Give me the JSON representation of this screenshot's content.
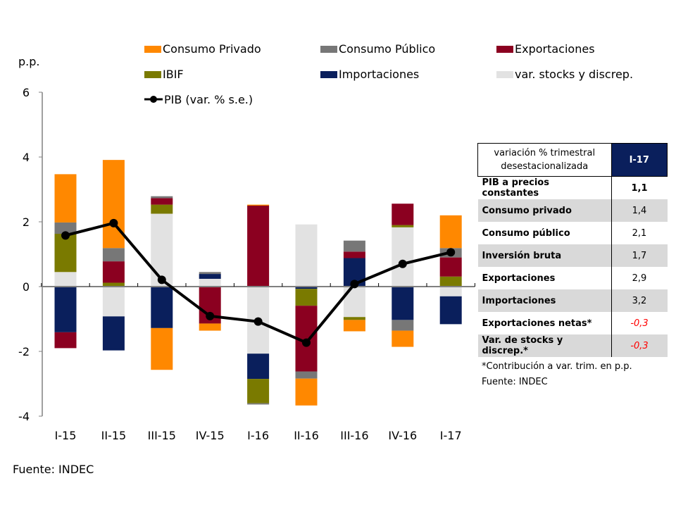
{
  "chart_data": {
    "type": "bar",
    "stacked": true,
    "ylabel": "p.p.",
    "ylim": [
      -4,
      6
    ],
    "yticks": [
      "6",
      "4",
      "2",
      "0",
      "-2",
      "-4"
    ],
    "grid": false,
    "legend_position": "top",
    "categories": [
      "I-15",
      "II-15",
      "III-15",
      "IV-15",
      "I-16",
      "II-16",
      "III-16",
      "IV-16",
      "I-17"
    ],
    "series": [
      {
        "name": "var. stocks y discrep.",
        "color": "#E2E2E2",
        "values": [
          0.45,
          -0.92,
          2.25,
          0.24,
          -2.07,
          1.92,
          -0.94,
          1.83,
          -0.3
        ]
      },
      {
        "name": "Importaciones",
        "color": "#0A1F5C",
        "values": [
          -1.41,
          -1.05,
          -1.28,
          0.15,
          -0.78,
          -0.07,
          0.88,
          -1.03,
          -0.86
        ]
      },
      {
        "name": "IBIF",
        "color": "#7A7A00",
        "values": [
          1.18,
          0.12,
          0.28,
          0.0,
          -0.75,
          -0.52,
          -0.09,
          0.07,
          0.31
        ]
      },
      {
        "name": "Exportaciones",
        "color": "#8B0020",
        "values": [
          -0.49,
          0.66,
          0.2,
          -1.14,
          2.5,
          -2.03,
          0.2,
          0.66,
          0.59
        ]
      },
      {
        "name": "Consumo Público",
        "color": "#777777",
        "values": [
          0.35,
          0.41,
          0.06,
          0.06,
          -0.04,
          -0.22,
          0.34,
          -0.33,
          0.29
        ]
      },
      {
        "name": "Consumo Privado",
        "color": "#FF8800",
        "values": [
          1.49,
          2.72,
          -1.29,
          -0.22,
          0.03,
          -0.83,
          -0.35,
          -0.5,
          1.01
        ]
      }
    ],
    "line": {
      "name": "PIB (var. % s.e.)",
      "color": "#000000",
      "values": [
        1.58,
        1.96,
        0.21,
        -0.91,
        -1.08,
        -1.73,
        0.08,
        0.7,
        1.06
      ]
    },
    "legend_order": [
      "Consumo Privado",
      "Consumo Público",
      "Exportaciones",
      "IBIF",
      "Importaciones",
      "var. stocks y discrep.",
      "PIB (var. % s.e.)"
    ]
  },
  "source": "Fuente: INDEC",
  "table": {
    "header_label": "variación % trimestral desestacionalizada",
    "header_period": "I-17",
    "header_bg": "#0A1F5C",
    "rows": [
      {
        "label": "PIB a precios constantes",
        "value": "1,1"
      },
      {
        "label": "Consumo privado",
        "value": "1,4"
      },
      {
        "label": "Consumo público",
        "value": "2,1"
      },
      {
        "label": "Inversión bruta",
        "value": "1,7"
      },
      {
        "label": "Exportaciones",
        "value": "2,9"
      },
      {
        "label": "Importaciones",
        "value": "3,2"
      },
      {
        "label": "Exportaciones netas*",
        "value": "-0,3"
      },
      {
        "label": "Var. de stocks y discrep.*",
        "value": "-0,3"
      }
    ],
    "negative_color": "#FF0000",
    "footnote": "*Contribución a var. trim. en p.p.",
    "source": "Fuente: INDEC"
  }
}
